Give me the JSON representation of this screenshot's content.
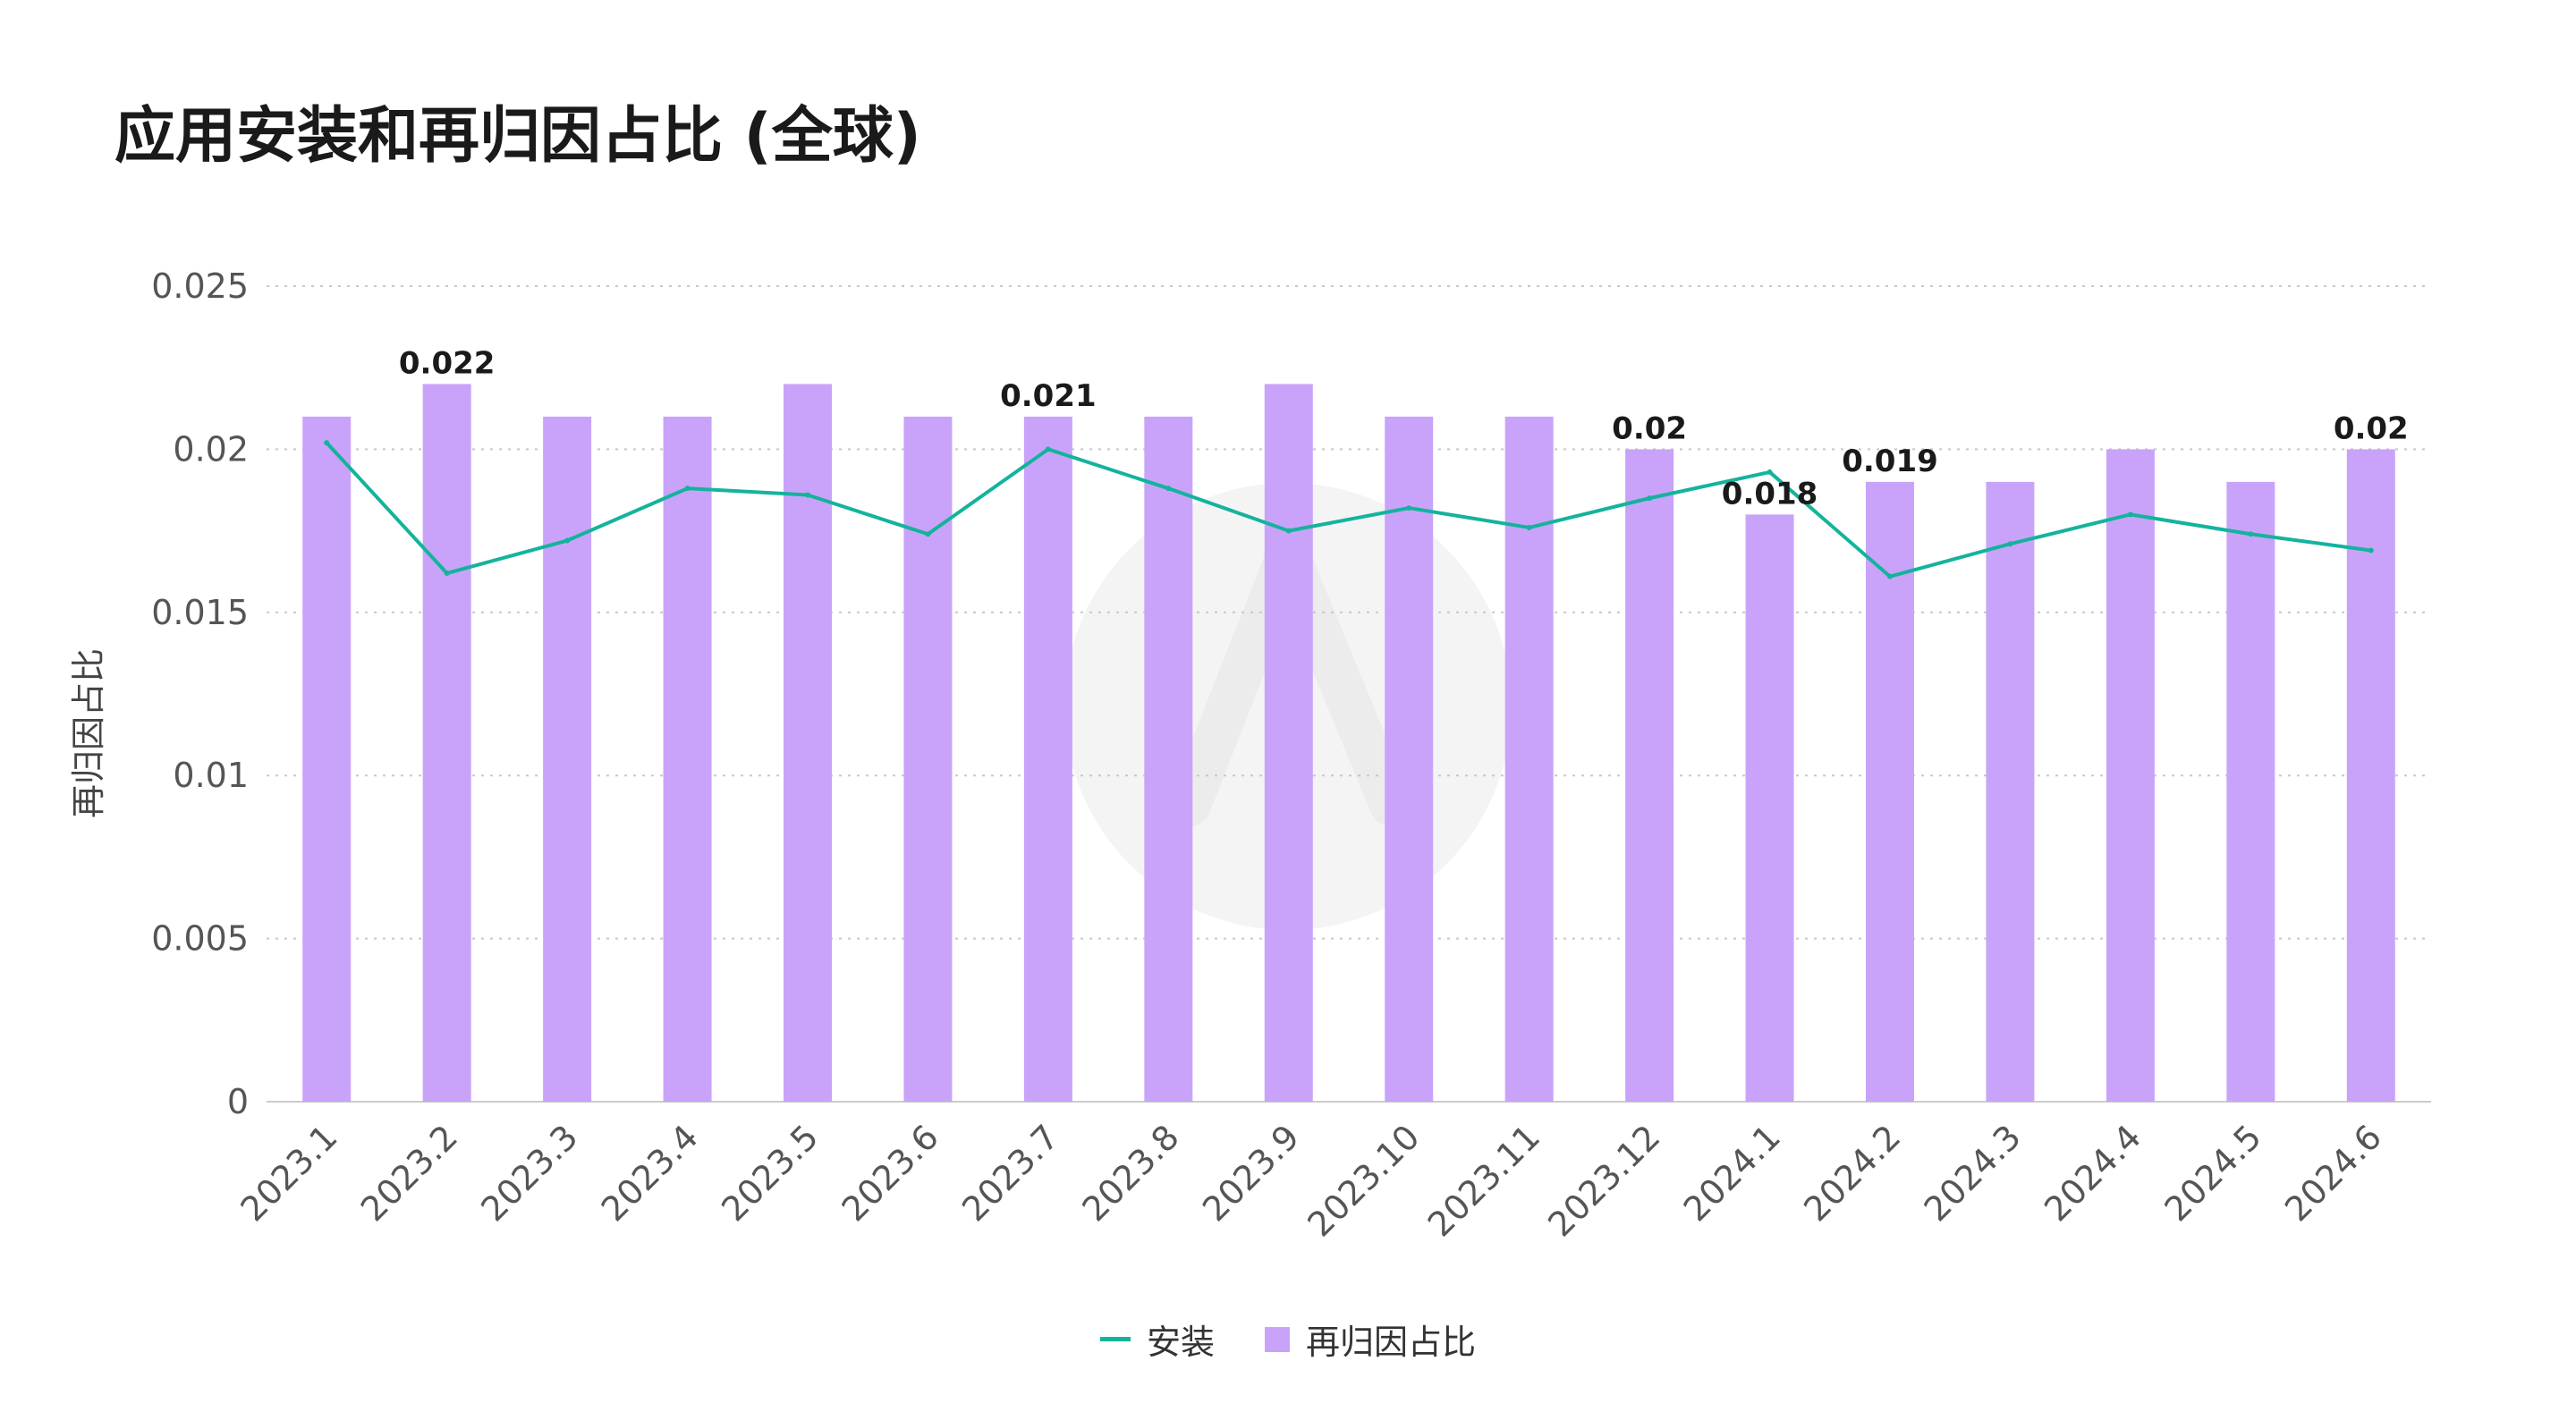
{
  "title": "应用安装和再归因占比 (全球)",
  "colors": {
    "bar": "#c9a3fa",
    "line": "#14b39c",
    "grid": "#c8c8c8",
    "axis_text": "#555555",
    "label_text": "#1a1a1a"
  },
  "chart_data": {
    "type": "bar",
    "title": "应用安装和再归因占比 (全球)",
    "ylabel": "再归因占比",
    "ylim": [
      0,
      0.025
    ],
    "yticks": [
      "0",
      "0.005",
      "0.01",
      "0.015",
      "0.02",
      "0.025"
    ],
    "ytick_values": [
      0,
      0.005,
      0.01,
      0.015,
      0.02,
      0.025
    ],
    "grid": true,
    "legend_position": "bottom",
    "categories": [
      "2023.1",
      "2023.2",
      "2023.3",
      "2023.4",
      "2023.5",
      "2023.6",
      "2023.7",
      "2023.8",
      "2023.9",
      "2023.10",
      "2023.11",
      "2023.12",
      "2024.1",
      "2024.2",
      "2024.3",
      "2024.4",
      "2024.5",
      "2024.6"
    ],
    "series": [
      {
        "name": "安装",
        "type": "line",
        "values": [
          0.0202,
          0.0162,
          0.0172,
          0.0188,
          0.0186,
          0.0174,
          0.02,
          0.0188,
          0.0175,
          0.0182,
          0.0176,
          0.0185,
          0.0193,
          0.0161,
          0.0171,
          0.018,
          0.0174,
          0.0169
        ]
      },
      {
        "name": "再归因占比",
        "type": "bar",
        "values": [
          0.021,
          0.022,
          0.021,
          0.021,
          0.022,
          0.021,
          0.021,
          0.021,
          0.022,
          0.021,
          0.021,
          0.02,
          0.018,
          0.019,
          0.019,
          0.02,
          0.019,
          0.02
        ]
      }
    ],
    "data_labels": [
      {
        "index": 1,
        "text": "0.022"
      },
      {
        "index": 6,
        "text": "0.021"
      },
      {
        "index": 11,
        "text": "0.02"
      },
      {
        "index": 12,
        "text": "0.018"
      },
      {
        "index": 13,
        "text": "0.019"
      },
      {
        "index": 17,
        "text": "0.02"
      }
    ]
  }
}
